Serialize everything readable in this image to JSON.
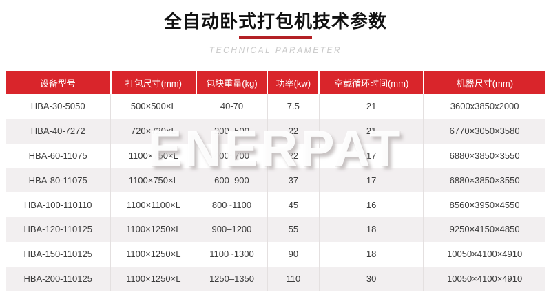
{
  "page": {
    "title": "全自动卧式打包机技术参数",
    "subtitle": "TECHNICAL PARAMETER"
  },
  "colors": {
    "header_red": "#d9252b",
    "accent_red": "#b32025",
    "row_alt_gray": "#f2eff0",
    "divider_gray": "#dddddd",
    "subtitle_gray": "#c9c9c9",
    "body_text": "#3c3c3c"
  },
  "watermark": {
    "text": "ENERPAT"
  },
  "table": {
    "columns": [
      "设备型号",
      "打包尺寸(mm)",
      "包块重量(kg)",
      "功率(kw)",
      "空载循环时间(mm)",
      "机器尺寸(mm)"
    ],
    "rows": [
      [
        "HBA-30-5050",
        "500×500×L",
        "40-70",
        "7.5",
        "21",
        "3600x3850x2000"
      ],
      [
        "HBA-40-7272",
        "720×720×L",
        "200~500",
        "22",
        "21",
        "6770×3050×3580"
      ],
      [
        "HBA-60-11075",
        "1100×750×L",
        "400~700",
        "22",
        "17",
        "6880×3850×3550"
      ],
      [
        "HBA-80-11075",
        "1100×750×L",
        "600–900",
        "37",
        "17",
        "6880×3850×3550"
      ],
      [
        "HBA-100-110110",
        "1100×1100×L",
        "800~1100",
        "45",
        "16",
        "8560×3950×4550"
      ],
      [
        "HBA-120-110125",
        "1100×1250×L",
        "900–1200",
        "55",
        "18",
        "9250×4150×4850"
      ],
      [
        "HBA-150-110125",
        "1100×1250×L",
        "1100~1300",
        "90",
        "18",
        "10050×4100×4910"
      ],
      [
        "HBA-200-110125",
        "1100×1250×L",
        "1250–1350",
        "110",
        "30",
        "10050×4100×4910"
      ]
    ]
  }
}
